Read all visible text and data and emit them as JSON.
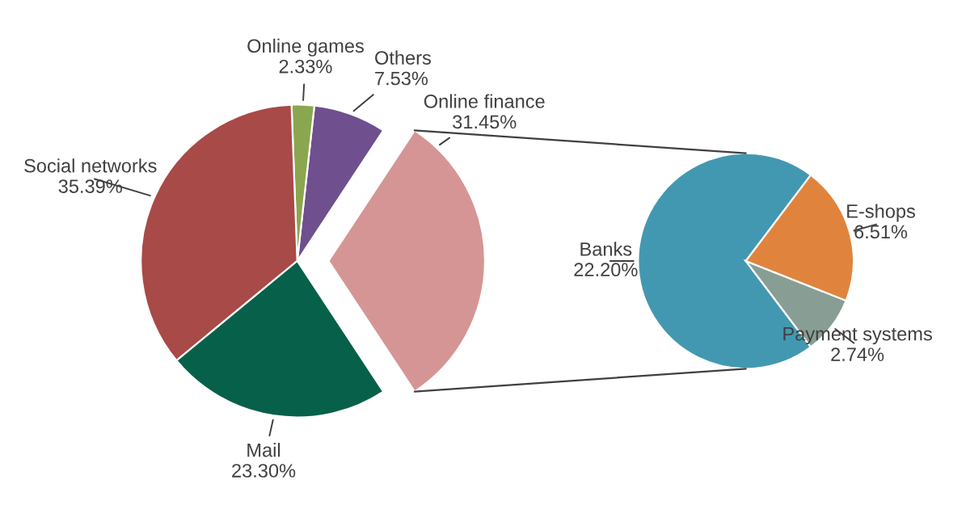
{
  "chart_data": [
    {
      "type": "pie",
      "categories": [
        "Online finance",
        "Others",
        "Online games",
        "Social networks",
        "Mail"
      ],
      "values": [
        31.45,
        7.53,
        2.33,
        35.39,
        23.3
      ],
      "value_labels": [
        "31.45%",
        "7.53%",
        "2.33%",
        "35.39%",
        "23.30%"
      ],
      "colors": [
        "#d69595",
        "#6f4f8e",
        "#8aa64e",
        "#a84a47",
        "#07604a"
      ]
    },
    {
      "type": "pie",
      "categories": [
        "Banks",
        "Payment systems",
        "E-shops"
      ],
      "values": [
        22.2,
        2.74,
        6.51
      ],
      "value_labels": [
        "22.20%",
        "2.74%",
        "6.51%"
      ],
      "colors": [
        "#4398b1",
        "#889e94",
        "#e0843d"
      ]
    }
  ]
}
